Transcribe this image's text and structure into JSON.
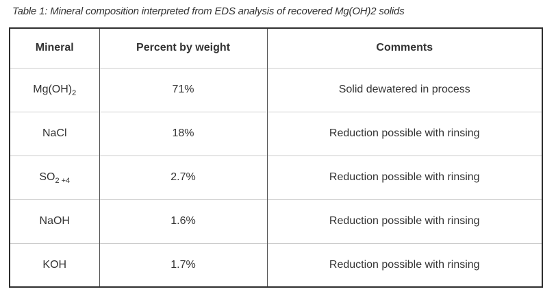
{
  "caption": "Table 1: Mineral composition interpreted from EDS analysis of recovered Mg(OH)2 solids",
  "table": {
    "columns": [
      "Mineral",
      "Percent by weight",
      "Comments"
    ],
    "rows": [
      {
        "formula": {
          "base": "Mg(OH)",
          "sub": "2"
        },
        "percent": "71%",
        "comment": "Solid dewatered in process"
      },
      {
        "formula": {
          "base": "NaCl",
          "sub": ""
        },
        "percent": "18%",
        "comment": "Reduction possible with rinsing"
      },
      {
        "formula": {
          "base": "SO",
          "sub": "2 +4"
        },
        "percent": "2.7%",
        "comment": "Reduction possible with rinsing"
      },
      {
        "formula": {
          "base": "NaOH",
          "sub": ""
        },
        "percent": "1.6%",
        "comment": "Reduction possible with rinsing"
      },
      {
        "formula": {
          "base": "KOH",
          "sub": ""
        },
        "percent": "1.7%",
        "comment": "Reduction possible with rinsing"
      }
    ]
  },
  "colors": {
    "text": "#333333",
    "outer_border": "#2e2e2e",
    "column_divider": "#555555",
    "row_divider": "#cccccc",
    "page_bg": "#ffffff"
  }
}
